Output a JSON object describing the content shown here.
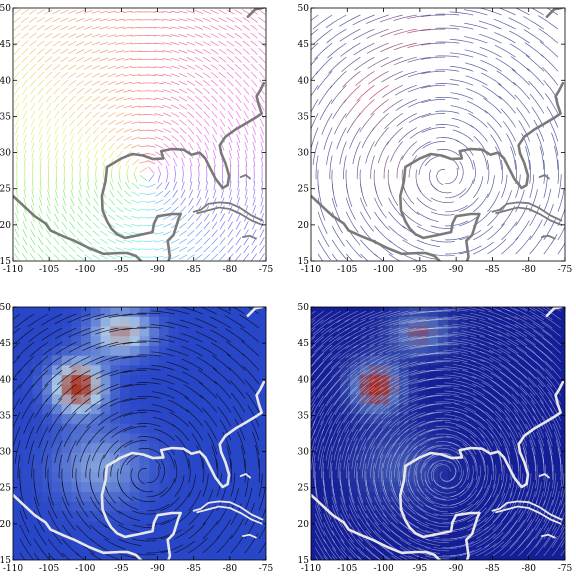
{
  "figure": {
    "panels": [
      {
        "id": "p1",
        "style": "rainbow-hedgehog"
      },
      {
        "id": "p2",
        "style": "red-blue-streamlines"
      },
      {
        "id": "p3",
        "style": "density-with-streamlines"
      },
      {
        "id": "p4",
        "style": "lic-texture"
      }
    ]
  },
  "axes": {
    "x_ticks": [
      "-110",
      "-105",
      "-100",
      "-95",
      "-90",
      "-85",
      "-80",
      "-75"
    ],
    "y_ticks": [
      "15",
      "20",
      "25",
      "30",
      "35",
      "40",
      "45",
      "50"
    ],
    "x_range": [
      -110,
      -75
    ],
    "y_range": [
      15,
      50
    ]
  },
  "colors": {
    "coast_gray": "#7a7a7a",
    "coast_white": "#e8e8e8",
    "density_low": "#2040c0",
    "density_mid": "#8aa8e8",
    "density_high": "#b03020"
  }
}
